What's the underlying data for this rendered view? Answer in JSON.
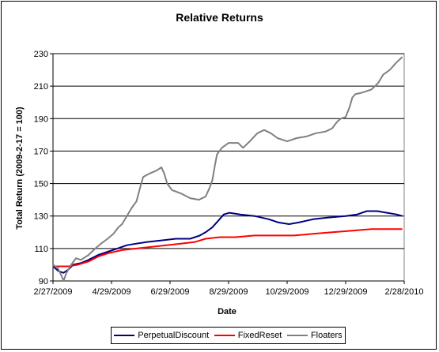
{
  "chart_data": {
    "type": "line",
    "title": "Relative Returns",
    "xlabel": "Date",
    "ylabel": "Total Return (2009-2-17 = 100)",
    "ylim": [
      90,
      230
    ],
    "yticks": [
      90,
      110,
      130,
      150,
      170,
      190,
      210,
      230
    ],
    "xlim": [
      "2009-02-27",
      "2010-02-28"
    ],
    "xticks": [
      {
        "date": "2009-02-27",
        "label": "2/27/2009"
      },
      {
        "date": "2009-04-29",
        "label": "4/29/2009"
      },
      {
        "date": "2009-06-29",
        "label": "6/29/2009"
      },
      {
        "date": "2009-08-29",
        "label": "8/29/2009"
      },
      {
        "date": "2009-10-29",
        "label": "10/29/2009"
      },
      {
        "date": "2009-12-29",
        "label": "12/29/2009"
      },
      {
        "date": "2010-02-28",
        "label": "2/28/2010"
      }
    ],
    "grid": "horizontal",
    "legend": "bottom",
    "series": [
      {
        "name": "PerpetualDiscount",
        "color": "#000080",
        "points": [
          [
            "2009-02-27",
            99
          ],
          [
            "2009-03-05",
            96
          ],
          [
            "2009-03-10",
            95
          ],
          [
            "2009-03-15",
            97
          ],
          [
            "2009-03-20",
            100
          ],
          [
            "2009-03-28",
            101
          ],
          [
            "2009-04-05",
            103
          ],
          [
            "2009-04-15",
            106
          ],
          [
            "2009-04-25",
            108
          ],
          [
            "2009-05-05",
            110
          ],
          [
            "2009-05-15",
            112
          ],
          [
            "2009-05-25",
            113
          ],
          [
            "2009-06-05",
            114
          ],
          [
            "2009-06-20",
            115
          ],
          [
            "2009-07-05",
            116
          ],
          [
            "2009-07-20",
            116
          ],
          [
            "2009-07-30",
            118
          ],
          [
            "2009-08-05",
            120
          ],
          [
            "2009-08-12",
            123
          ],
          [
            "2009-08-18",
            127
          ],
          [
            "2009-08-24",
            131
          ],
          [
            "2009-08-30",
            132
          ],
          [
            "2009-09-10",
            131
          ],
          [
            "2009-09-25",
            130
          ],
          [
            "2009-10-10",
            128
          ],
          [
            "2009-10-20",
            126
          ],
          [
            "2009-10-31",
            125
          ],
          [
            "2009-11-10",
            126
          ],
          [
            "2009-11-25",
            128
          ],
          [
            "2009-12-10",
            129
          ],
          [
            "2009-12-29",
            130
          ],
          [
            "2010-01-10",
            131
          ],
          [
            "2010-01-20",
            133
          ],
          [
            "2010-01-31",
            133
          ],
          [
            "2010-02-10",
            132
          ],
          [
            "2010-02-20",
            131
          ],
          [
            "2010-02-26",
            130
          ]
        ]
      },
      {
        "name": "FixedReset",
        "color": "#ff0000",
        "points": [
          [
            "2009-02-27",
            99
          ],
          [
            "2009-03-05",
            99
          ],
          [
            "2009-03-15",
            99
          ],
          [
            "2009-03-25",
            100
          ],
          [
            "2009-04-05",
            102
          ],
          [
            "2009-04-15",
            105
          ],
          [
            "2009-04-25",
            107
          ],
          [
            "2009-05-10",
            109
          ],
          [
            "2009-05-25",
            110
          ],
          [
            "2009-06-10",
            111
          ],
          [
            "2009-06-25",
            112
          ],
          [
            "2009-07-10",
            113
          ],
          [
            "2009-07-25",
            114
          ],
          [
            "2009-08-05",
            116
          ],
          [
            "2009-08-20",
            117
          ],
          [
            "2009-09-05",
            117
          ],
          [
            "2009-09-25",
            118
          ],
          [
            "2009-10-15",
            118
          ],
          [
            "2009-11-05",
            118
          ],
          [
            "2009-11-25",
            119
          ],
          [
            "2009-12-15",
            120
          ],
          [
            "2010-01-05",
            121
          ],
          [
            "2010-01-25",
            122
          ],
          [
            "2010-02-10",
            122
          ],
          [
            "2010-02-26",
            122
          ]
        ]
      },
      {
        "name": "Floaters",
        "color": "#808080",
        "points": [
          [
            "2009-02-27",
            100
          ],
          [
            "2009-03-04",
            98
          ],
          [
            "2009-03-08",
            93
          ],
          [
            "2009-03-10",
            90
          ],
          [
            "2009-03-13",
            95
          ],
          [
            "2009-03-18",
            100
          ],
          [
            "2009-03-23",
            104
          ],
          [
            "2009-03-28",
            103
          ],
          [
            "2009-04-05",
            106
          ],
          [
            "2009-04-12",
            110
          ],
          [
            "2009-04-18",
            113
          ],
          [
            "2009-04-25",
            116
          ],
          [
            "2009-05-01",
            119
          ],
          [
            "2009-05-06",
            123
          ],
          [
            "2009-05-10",
            125
          ],
          [
            "2009-05-15",
            130
          ],
          [
            "2009-05-20",
            135
          ],
          [
            "2009-05-25",
            139
          ],
          [
            "2009-05-29",
            148
          ],
          [
            "2009-06-01",
            154
          ],
          [
            "2009-06-07",
            156
          ],
          [
            "2009-06-15",
            158
          ],
          [
            "2009-06-20",
            160
          ],
          [
            "2009-06-23",
            156
          ],
          [
            "2009-06-26",
            150
          ],
          [
            "2009-07-01",
            146
          ],
          [
            "2009-07-10",
            144
          ],
          [
            "2009-07-20",
            141
          ],
          [
            "2009-07-29",
            140
          ],
          [
            "2009-08-05",
            142
          ],
          [
            "2009-08-09",
            147
          ],
          [
            "2009-08-12",
            152
          ],
          [
            "2009-08-15",
            162
          ],
          [
            "2009-08-17",
            168
          ],
          [
            "2009-08-22",
            172
          ],
          [
            "2009-08-29",
            175
          ],
          [
            "2009-09-08",
            175
          ],
          [
            "2009-09-13",
            172
          ],
          [
            "2009-09-20",
            176
          ],
          [
            "2009-09-28",
            181
          ],
          [
            "2009-10-05",
            183
          ],
          [
            "2009-10-12",
            181
          ],
          [
            "2009-10-19",
            178
          ],
          [
            "2009-10-29",
            176
          ],
          [
            "2009-11-08",
            178
          ],
          [
            "2009-11-18",
            179
          ],
          [
            "2009-11-28",
            181
          ],
          [
            "2009-12-08",
            182
          ],
          [
            "2009-12-15",
            184
          ],
          [
            "2009-12-20",
            188
          ],
          [
            "2009-12-24",
            190
          ],
          [
            "2009-12-29",
            191
          ],
          [
            "2010-01-02",
            197
          ],
          [
            "2010-01-05",
            203
          ],
          [
            "2010-01-08",
            205
          ],
          [
            "2010-01-15",
            206
          ],
          [
            "2010-01-25",
            208
          ],
          [
            "2010-02-01",
            212
          ],
          [
            "2010-02-06",
            217
          ],
          [
            "2010-02-13",
            220
          ],
          [
            "2010-02-19",
            224
          ],
          [
            "2010-02-26",
            228
          ]
        ]
      }
    ]
  }
}
